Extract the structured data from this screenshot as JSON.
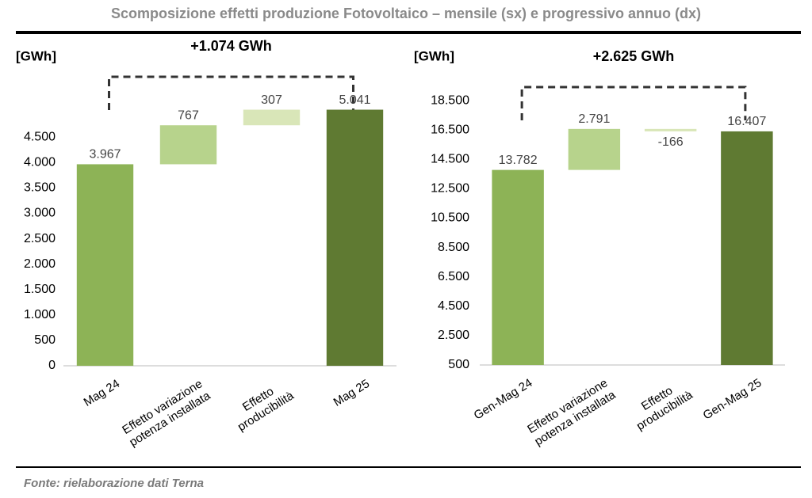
{
  "title": "Scomposizione effetti produzione Fotovoltaico – mensile (sx) e progressivo annuo (dx)",
  "source": "Fonte: rielaborazione dati Terna",
  "chart_data": [
    {
      "type": "waterfall",
      "y_label": "[GWh]",
      "annotation": "+1.074 GWh",
      "categories": [
        "Mag 24",
        "Effetto variazione\npotenza installata",
        "Effetto\nproducibilità",
        "Mag  25"
      ],
      "values": [
        3967,
        767,
        307,
        5041
      ],
      "value_labels": [
        "3.967",
        "767",
        "307",
        "5.041"
      ],
      "measure": [
        "absolute",
        "relative",
        "relative",
        "total"
      ],
      "colors": [
        "#8db356",
        "#b7d38c",
        "#d9e6b8",
        "#5f7a32"
      ],
      "ylim": [
        0,
        6000
      ],
      "yticks": [
        0,
        500,
        {
          "value": 1000,
          "label": "1.000"
        },
        {
          "value": 1500,
          "label": "1.500"
        },
        {
          "value": 2000,
          "label": "2.000"
        },
        {
          "value": 2500,
          "label": "2.500"
        },
        {
          "value": 3000,
          "label": "3.000"
        },
        {
          "value": 3500,
          "label": "3.500"
        },
        {
          "value": 4000,
          "label": "4.000"
        },
        {
          "value": 4500,
          "label": "4.500"
        }
      ]
    },
    {
      "type": "waterfall",
      "y_label": "[GWh]",
      "annotation": "+2.625 GWh",
      "categories": [
        "Gen-Mag 24",
        "Effetto variazione\npotenza installata",
        "Effetto\nproducibilità",
        "Gen-Mag 25"
      ],
      "values": [
        13782,
        2791,
        -166,
        16407
      ],
      "value_labels": [
        "13.782",
        "2.791",
        "-166",
        "16.407"
      ],
      "measure": [
        "absolute",
        "relative",
        "relative",
        "total"
      ],
      "colors": [
        "#8db356",
        "#b7d38c",
        "#d9e6b8",
        "#5f7a32"
      ],
      "ylim": [
        500,
        20500
      ],
      "yticks": [
        500,
        {
          "value": 2500,
          "label": "2.500"
        },
        {
          "value": 4500,
          "label": "4.500"
        },
        {
          "value": 6500,
          "label": "6.500"
        },
        {
          "value": 8500,
          "label": "8.500"
        },
        {
          "value": 10500,
          "label": "10.500"
        },
        {
          "value": 12500,
          "label": "12.500"
        },
        {
          "value": 14500,
          "label": "14.500"
        },
        {
          "value": 16500,
          "label": "16.500"
        },
        {
          "value": 18500,
          "label": "18.500"
        }
      ]
    }
  ]
}
